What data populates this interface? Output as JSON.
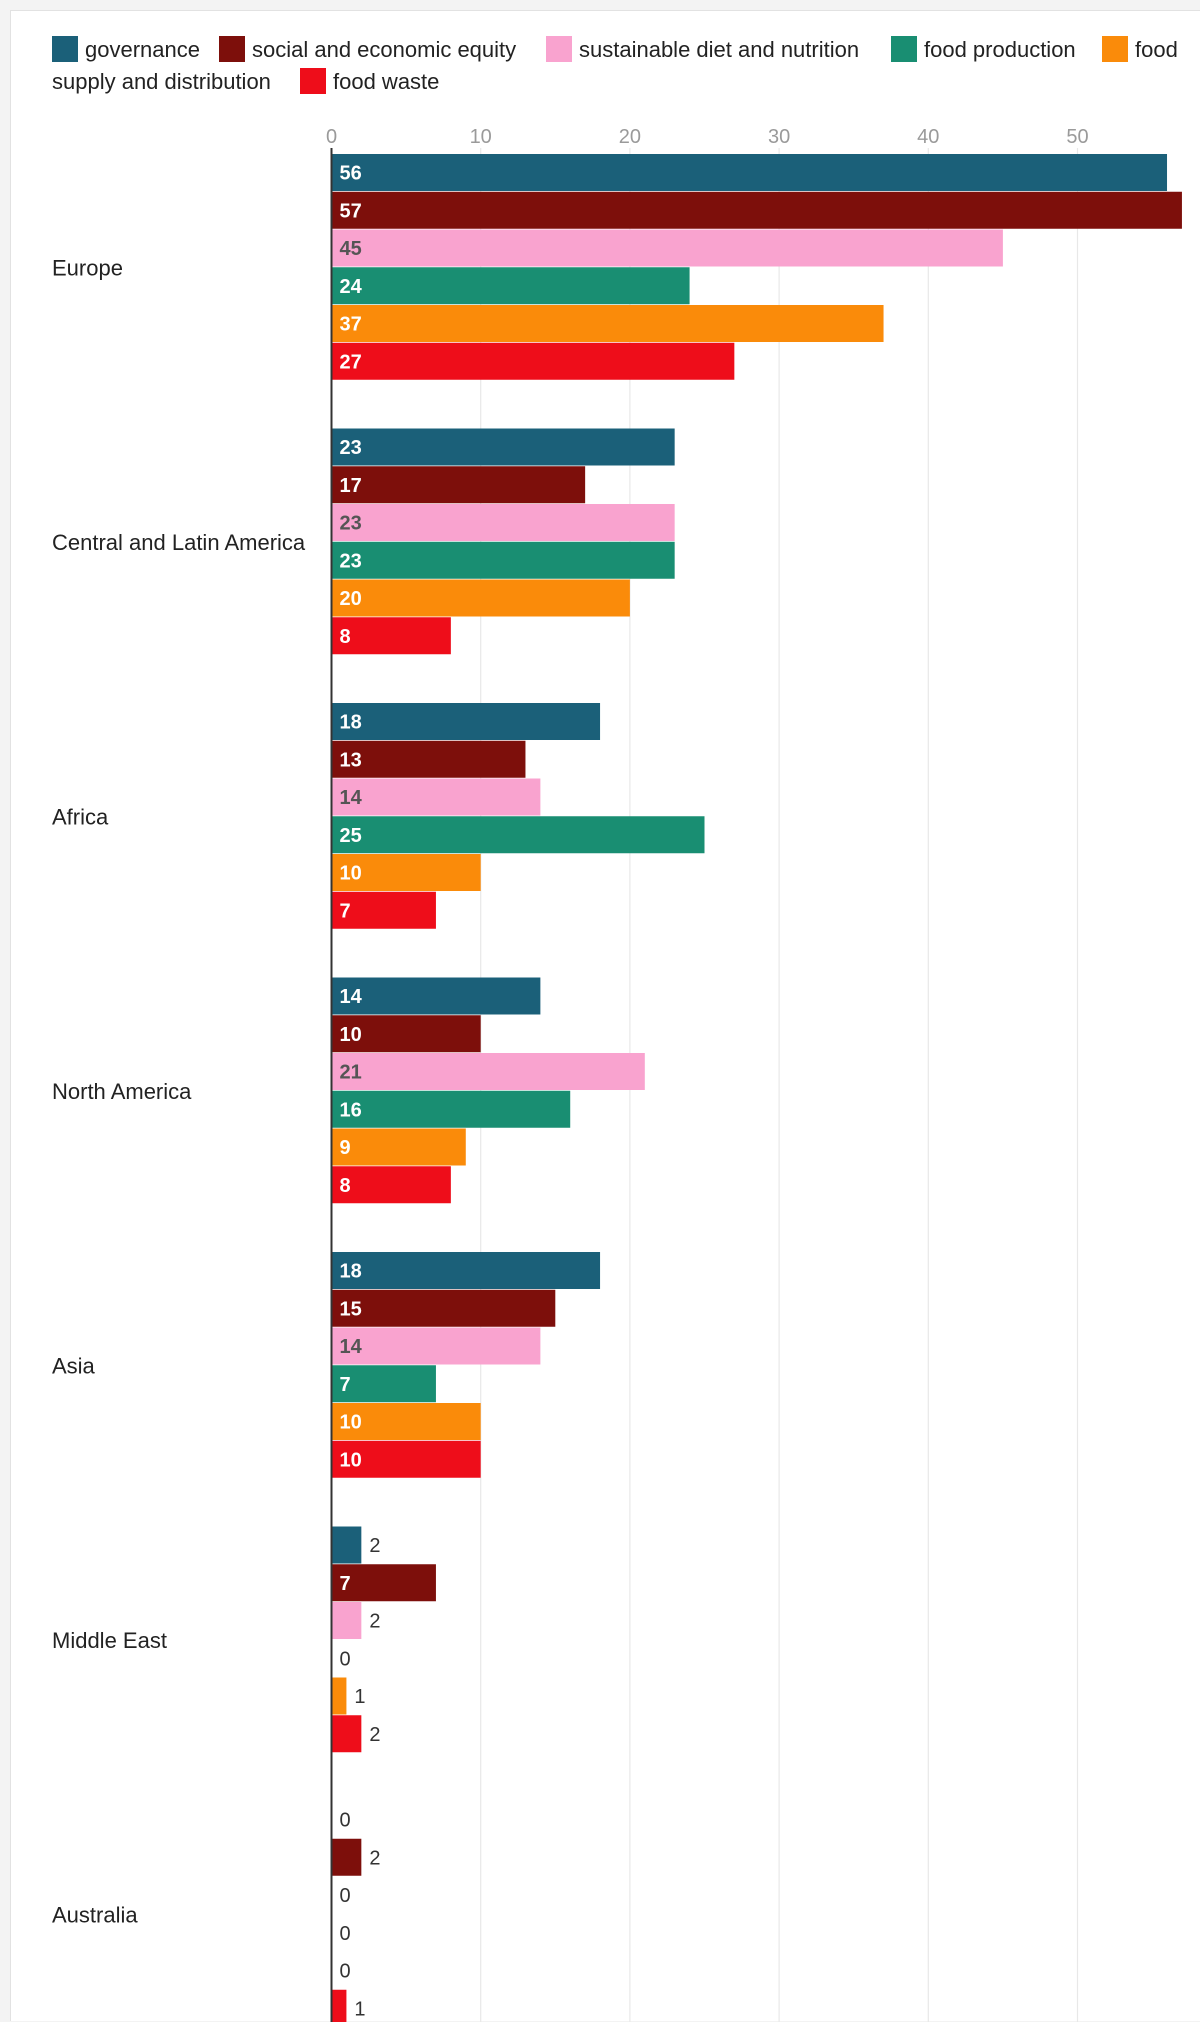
{
  "chart_data": {
    "type": "bar",
    "orientation": "horizontal",
    "title": "",
    "xlabel": "",
    "ylabel": "",
    "xlim": [
      0,
      57
    ],
    "x_ticks": [
      0,
      10,
      20,
      30,
      40,
      50
    ],
    "grid": true,
    "legend_position": "top",
    "categories": [
      "Europe",
      "Central and Latin America",
      "Africa",
      "North America",
      "Asia",
      "Middle East",
      "Australia"
    ],
    "series": [
      {
        "name": "governance",
        "color": "#1b6079",
        "values": [
          56,
          23,
          18,
          14,
          18,
          2,
          0
        ]
      },
      {
        "name": "social and economic equity",
        "color": "#7d0f0b",
        "values": [
          57,
          17,
          13,
          10,
          15,
          7,
          2
        ]
      },
      {
        "name": "sustainable diet and nutrition",
        "color": "#f9a3cf",
        "values": [
          45,
          23,
          14,
          21,
          14,
          2,
          0
        ]
      },
      {
        "name": "food production",
        "color": "#198e72",
        "values": [
          24,
          23,
          25,
          16,
          7,
          0,
          0
        ]
      },
      {
        "name": "food supply and distribution",
        "color": "#fa8b0a",
        "values": [
          37,
          20,
          10,
          9,
          10,
          1,
          0
        ]
      },
      {
        "name": "food waste",
        "color": "#ee0d1a",
        "values": [
          27,
          8,
          7,
          8,
          10,
          2,
          1
        ]
      }
    ]
  }
}
